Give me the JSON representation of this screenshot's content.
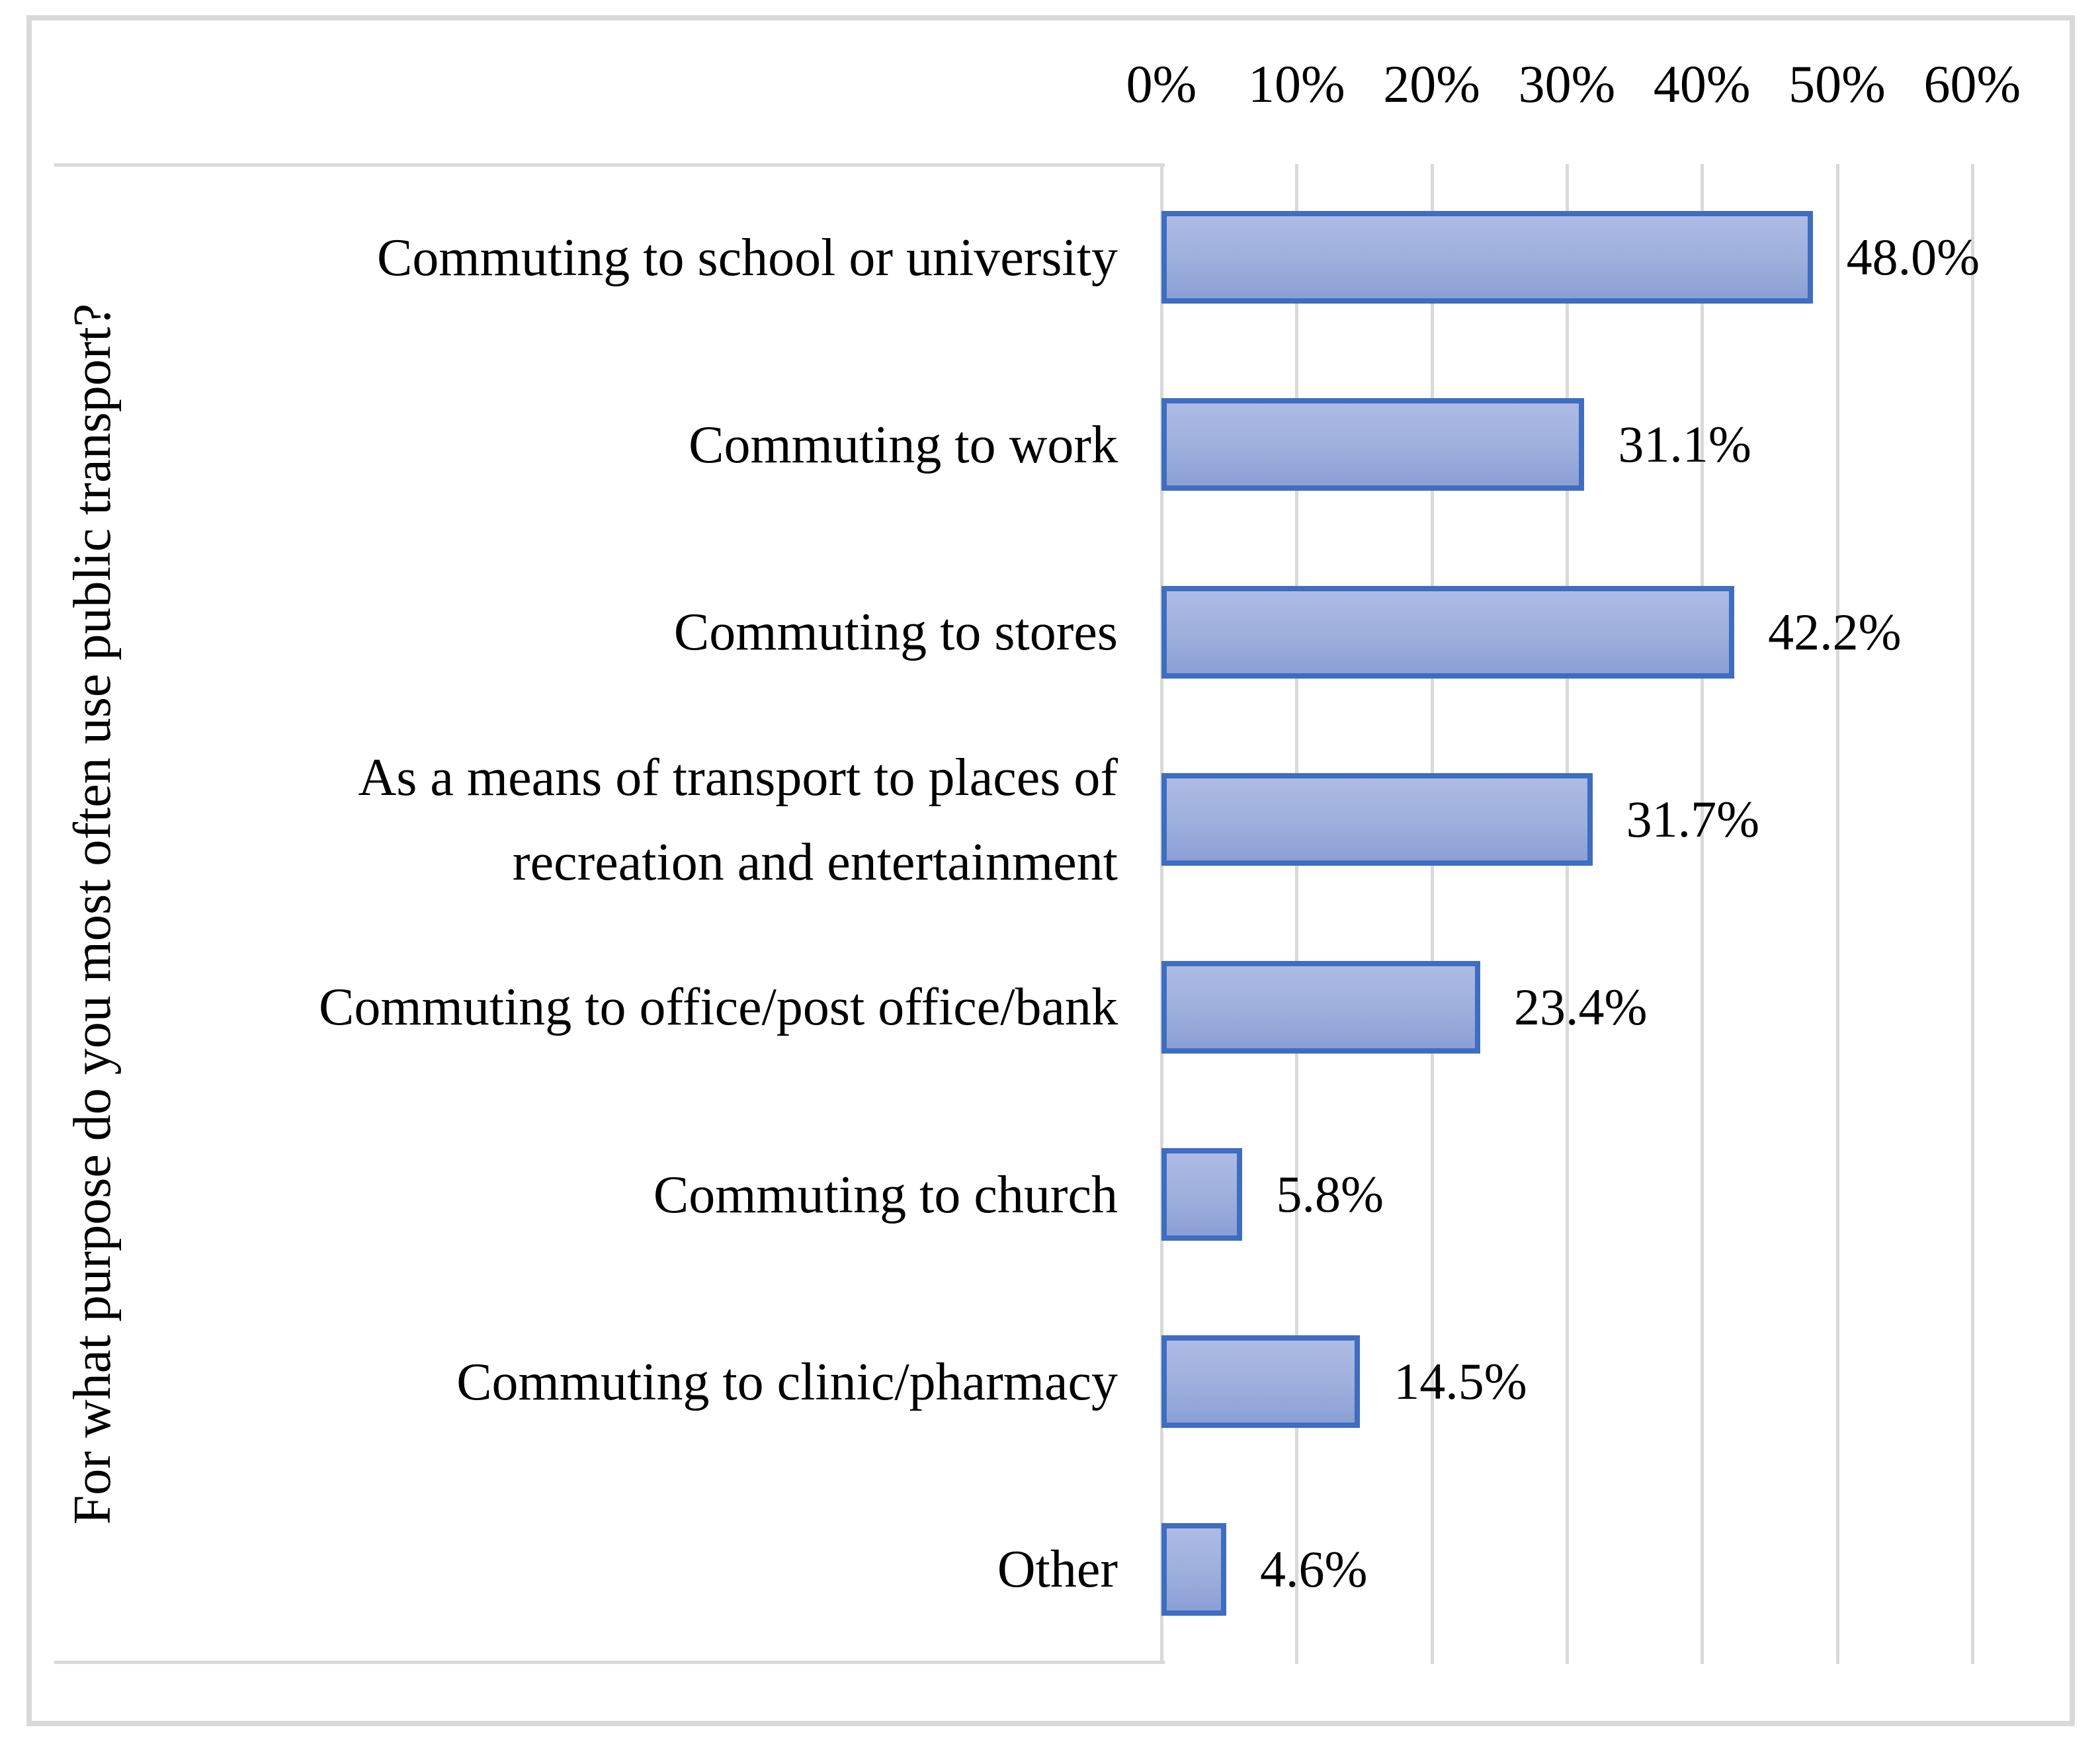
{
  "chart_data": {
    "type": "bar",
    "orientation": "horizontal",
    "title": "",
    "xlabel": "",
    "ylabel": "For what purpose do you most often use public transport?",
    "categories": [
      [
        "Commuting to school or university"
      ],
      [
        "Commuting to work"
      ],
      [
        "Commuting to stores"
      ],
      [
        "As a means of transport to places of",
        "recreation and entertainment"
      ],
      [
        "Commuting to office/post office/bank"
      ],
      [
        "Commuting to church"
      ],
      [
        "Commuting to clinic/pharmacy"
      ],
      [
        "Other"
      ]
    ],
    "values": [
      48.0,
      31.1,
      42.2,
      31.7,
      23.4,
      5.8,
      14.5,
      4.6
    ],
    "value_labels": [
      "48.0%",
      "31.1%",
      "42.2%",
      "31.7%",
      "23.4%",
      "5.8%",
      "14.5%",
      "4.6%"
    ],
    "x_tick_labels": [
      "0%",
      "10%",
      "20%",
      "30%",
      "40%",
      "50%",
      "60%"
    ],
    "x_tick_values": [
      0,
      10,
      20,
      30,
      40,
      50,
      60
    ],
    "xlim": [
      0,
      64
    ],
    "grid": true,
    "legend": "none",
    "data_labels_position": "outside-end",
    "colors": {
      "bar_fill_top": "#adbbe4",
      "bar_fill_bottom": "#8c9fd5",
      "bar_border": "#3e6dc1",
      "gridline": "#d9d9d9",
      "frame_border": "#d9d9d9",
      "text": "#000000",
      "background": "#ffffff"
    }
  }
}
